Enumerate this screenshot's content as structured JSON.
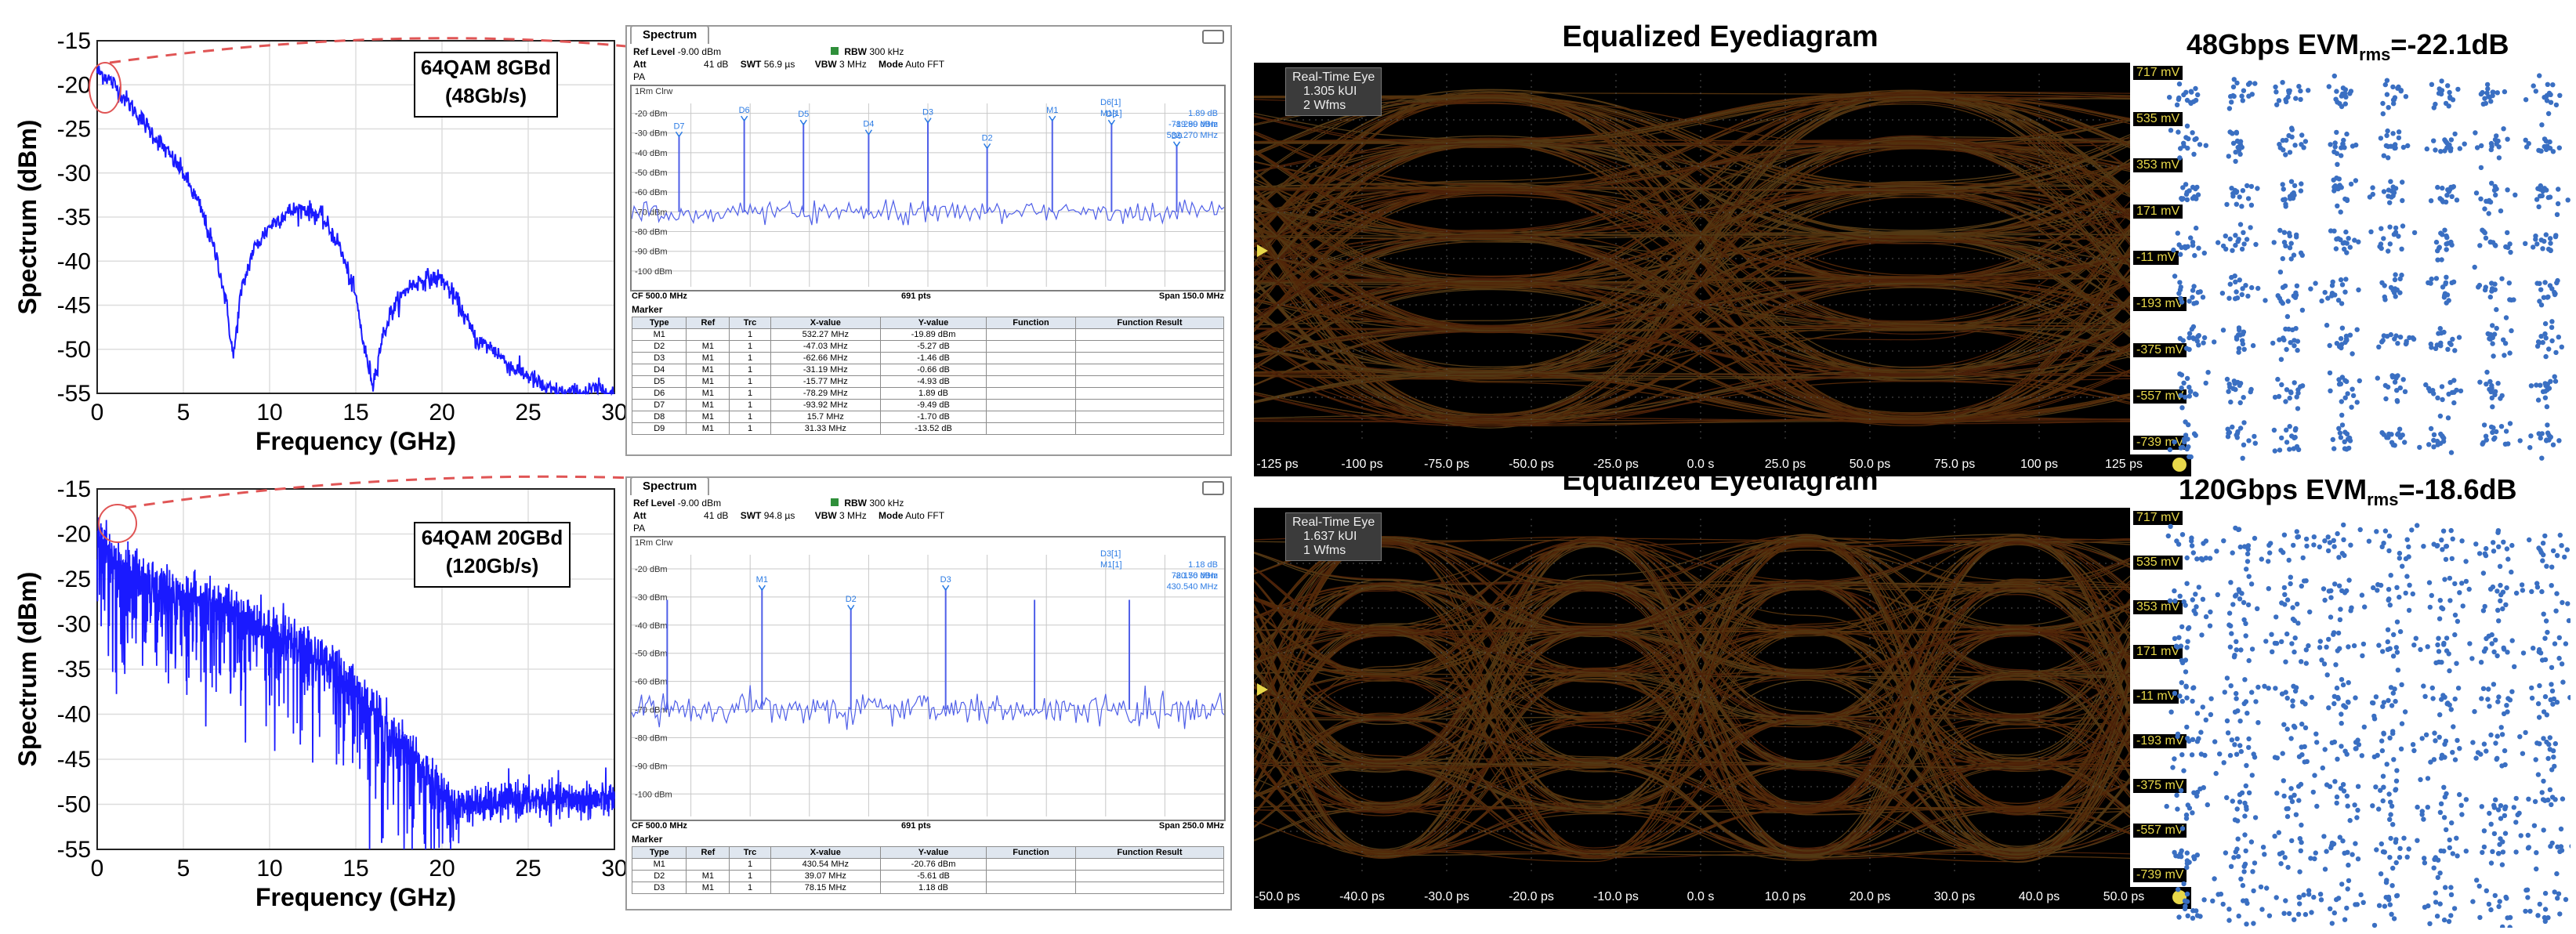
{
  "spectra": [
    {
      "label_line1": "64QAM 8GBd",
      "label_line2": "(48Gb/s)",
      "xlabel": "Frequency (GHz)",
      "ylabel": "Spectrum (dBm)",
      "xticks": [
        "0",
        "5",
        "10",
        "15",
        "20",
        "25",
        "30"
      ],
      "yticks": [
        "-15",
        "-20",
        "-25",
        "-30",
        "-35",
        "-40",
        "-45",
        "-50",
        "-55"
      ]
    },
    {
      "label_line1": "64QAM 20GBd",
      "label_line2": "(120Gb/s)",
      "xlabel": "Frequency (GHz)",
      "ylabel": "Spectrum (dBm)",
      "xticks": [
        "0",
        "5",
        "10",
        "15",
        "20",
        "25",
        "30"
      ],
      "yticks": [
        "-15",
        "-20",
        "-25",
        "-30",
        "-35",
        "-40",
        "-45",
        "-50",
        "-55"
      ]
    }
  ],
  "analyzers": [
    {
      "tab": "Spectrum",
      "ref_level_label": "Ref Level",
      "ref_level": "-9.00 dBm",
      "att_label": "Att",
      "att": "41 dB",
      "swt_label": "SWT",
      "swt": "56.9 µs",
      "rbw_label": "RBW",
      "rbw": "300 kHz",
      "vbw_label": "VBW",
      "vbw": "3 MHz",
      "mode_label": "Mode",
      "mode": "Auto FFT",
      "pa": "PA",
      "trace_title": "1Rm Clrw",
      "ylabels": [
        "-20 dBm",
        "-30 dBm",
        "-40 dBm",
        "-50 dBm",
        "-60 dBm",
        "-70 dBm",
        "-80 dBm",
        "-90 dBm",
        "-100 dBm"
      ],
      "readout": [
        "D6[1]",
        "1.89 dB",
        "-78.290 MHz",
        "M1[1]",
        "-19.89 dBm",
        "532.270 MHz"
      ],
      "marker_labels": [
        "D7",
        "D6",
        "D5",
        "D4",
        "D3",
        "D2",
        "M1",
        "D8",
        "D9"
      ],
      "cf": "CF 500.0 MHz",
      "pts": "691 pts",
      "span": "Span 150.0 MHz",
      "marker_title": "Marker",
      "headers": [
        "Type",
        "Ref",
        "Trc",
        "X-value",
        "Y-value",
        "Function",
        "Function Result"
      ],
      "rows": [
        [
          "M1",
          "",
          "1",
          "532.27 MHz",
          "-19.89 dBm",
          "",
          ""
        ],
        [
          "D2",
          "M1",
          "1",
          "-47.03 MHz",
          "-5.27 dB",
          "",
          ""
        ],
        [
          "D3",
          "M1",
          "1",
          "-62.66 MHz",
          "-1.46 dB",
          "",
          ""
        ],
        [
          "D4",
          "M1",
          "1",
          "-31.19 MHz",
          "-0.66 dB",
          "",
          ""
        ],
        [
          "D5",
          "M1",
          "1",
          "-15.77 MHz",
          "-4.93 dB",
          "",
          ""
        ],
        [
          "D6",
          "M1",
          "1",
          "-78.29 MHz",
          "1.89 dB",
          "",
          ""
        ],
        [
          "D7",
          "M1",
          "1",
          "-93.92 MHz",
          "-9.49 dB",
          "",
          ""
        ],
        [
          "D8",
          "M1",
          "1",
          "15.7 MHz",
          "-1.70 dB",
          "",
          ""
        ],
        [
          "D9",
          "M1",
          "1",
          "31.33 MHz",
          "-13.52 dB",
          "",
          ""
        ]
      ]
    },
    {
      "tab": "Spectrum",
      "ref_level_label": "Ref Level",
      "ref_level": "-9.00 dBm",
      "att_label": "Att",
      "att": "41 dB",
      "swt_label": "SWT",
      "swt": "94.8 µs",
      "rbw_label": "RBW",
      "rbw": "300 kHz",
      "vbw_label": "VBW",
      "vbw": "3 MHz",
      "mode_label": "Mode",
      "mode": "Auto FFT",
      "pa": "PA",
      "trace_title": "1Rm Clrw",
      "ylabels": [
        "-20 dBm",
        "-30 dBm",
        "-40 dBm",
        "-50 dBm",
        "-60 dBm",
        "-70 dBm",
        "-80 dBm",
        "-90 dBm",
        "-100 dBm"
      ],
      "readout": [
        "D3[1]",
        "1.18 dB",
        "78.150 MHz",
        "M1[1]",
        "-20.76 dBm",
        "430.540 MHz"
      ],
      "marker_labels": [
        "M1",
        "D2",
        "D3"
      ],
      "cf": "CF 500.0 MHz",
      "pts": "691 pts",
      "span": "Span 250.0 MHz",
      "marker_title": "Marker",
      "headers": [
        "Type",
        "Ref",
        "Trc",
        "X-value",
        "Y-value",
        "Function",
        "Function Result"
      ],
      "rows": [
        [
          "M1",
          "",
          "1",
          "430.54 MHz",
          "-20.76 dBm",
          "",
          ""
        ],
        [
          "D2",
          "M1",
          "1",
          "39.07 MHz",
          "-5.61 dB",
          "",
          ""
        ],
        [
          "D3",
          "M1",
          "1",
          "78.15 MHz",
          "1.18 dB",
          "",
          ""
        ]
      ]
    }
  ],
  "eyes": [
    {
      "title": "Equalized Eyediagram",
      "info1": "Real-Time Eye",
      "info2": "1.305 kUI",
      "info3": "2 Wfms",
      "yticks": [
        "717 mV",
        "535 mV",
        "353 mV",
        "171 mV",
        "-11 mV",
        "-193 mV",
        "-375 mV",
        "-557 mV",
        "-739 mV"
      ],
      "xticks": [
        "-125 ps",
        "-100 ps",
        "-75.0 ps",
        "-50.0 ps",
        "-25.0 ps",
        "0.0 s",
        "25.0 ps",
        "50.0 ps",
        "75.0 ps",
        "100 ps",
        "125 ps"
      ]
    },
    {
      "title": "Equalized Eyediagram",
      "info1": "Real-Time Eye",
      "info2": "1.637 kUI",
      "info3": "1 Wfms",
      "yticks": [
        "717 mV",
        "535 mV",
        "353 mV",
        "171 mV",
        "-11 mV",
        "-193 mV",
        "-375 mV",
        "-557 mV",
        "-739 mV"
      ],
      "xticks": [
        "-50.0 ps",
        "-40.0 ps",
        "-30.0 ps",
        "-20.0 ps",
        "-10.0 ps",
        "0.0 s",
        "10.0 ps",
        "20.0 ps",
        "30.0 ps",
        "40.0 ps",
        "50.0 ps"
      ]
    }
  ],
  "constellations": [
    {
      "title_main": "48Gbps EVM",
      "title_sub": "rms",
      "title_tail": "=-22.1dB",
      "spread": 0.09
    },
    {
      "title_main": "120Gbps EVM",
      "title_sub": "rms",
      "title_tail": "=-18.6dB",
      "spread": 0.13
    }
  ],
  "chart_data": [
    {
      "type": "line",
      "title": "",
      "xlabel": "Frequency (GHz)",
      "ylabel": "Spectrum (dBm)",
      "xlim": [
        0,
        30
      ],
      "ylim": [
        -55,
        -15
      ],
      "series": [
        {
          "x": [
            0,
            0.5,
            1,
            2,
            3,
            4,
            5,
            6,
            7,
            7.5,
            7.9,
            8.3,
            9,
            10,
            11,
            12,
            13,
            14,
            15,
            15.5,
            16,
            16.5,
            17,
            18,
            19,
            20,
            21,
            22,
            23,
            24,
            25,
            26,
            27,
            28,
            29,
            30
          ],
          "y": [
            -18.5,
            -19,
            -20,
            -22.5,
            -25,
            -27.5,
            -30,
            -34,
            -40,
            -45,
            -51,
            -44,
            -39,
            -36,
            -34.5,
            -34,
            -35,
            -38,
            -44,
            -50,
            -54,
            -49,
            -46,
            -43,
            -42,
            -42,
            -45,
            -49,
            -50,
            -52,
            -53,
            -54.5,
            -55,
            -55,
            -54.5,
            -55
          ]
        }
      ]
    },
    {
      "type": "line",
      "title": "",
      "xlabel": "Frequency (GHz)",
      "ylabel": "Spectrum (dBm)",
      "xlim": [
        0,
        30
      ],
      "ylim": [
        -55,
        -15
      ],
      "series": [
        {
          "x": [
            0,
            1,
            2,
            3,
            4,
            5,
            6,
            7,
            8,
            9,
            10,
            11,
            12,
            13,
            14,
            15,
            16,
            17,
            18,
            19,
            20,
            20.5,
            21,
            22,
            23,
            24,
            25,
            26,
            27,
            28,
            29,
            30
          ],
          "y": [
            -19.5,
            -21,
            -23,
            -24,
            -25,
            -25.5,
            -26,
            -26.5,
            -27.5,
            -28.5,
            -29.5,
            -30,
            -31,
            -33,
            -34,
            -36,
            -38,
            -41,
            -43,
            -45,
            -47,
            -48.5,
            -50,
            -50,
            -50,
            -49.5,
            -49.5,
            -49.5,
            -49.5,
            -49.5,
            -49.5,
            -49.5
          ]
        }
      ]
    }
  ],
  "colors": {
    "spectrum": "#1a1aff",
    "sa_trace": "#4f5fe8",
    "marker": "#2b7be4",
    "eye_axis": "#e8d84a",
    "const_dot": "#3a6fc2",
    "dash": "#e05555"
  }
}
